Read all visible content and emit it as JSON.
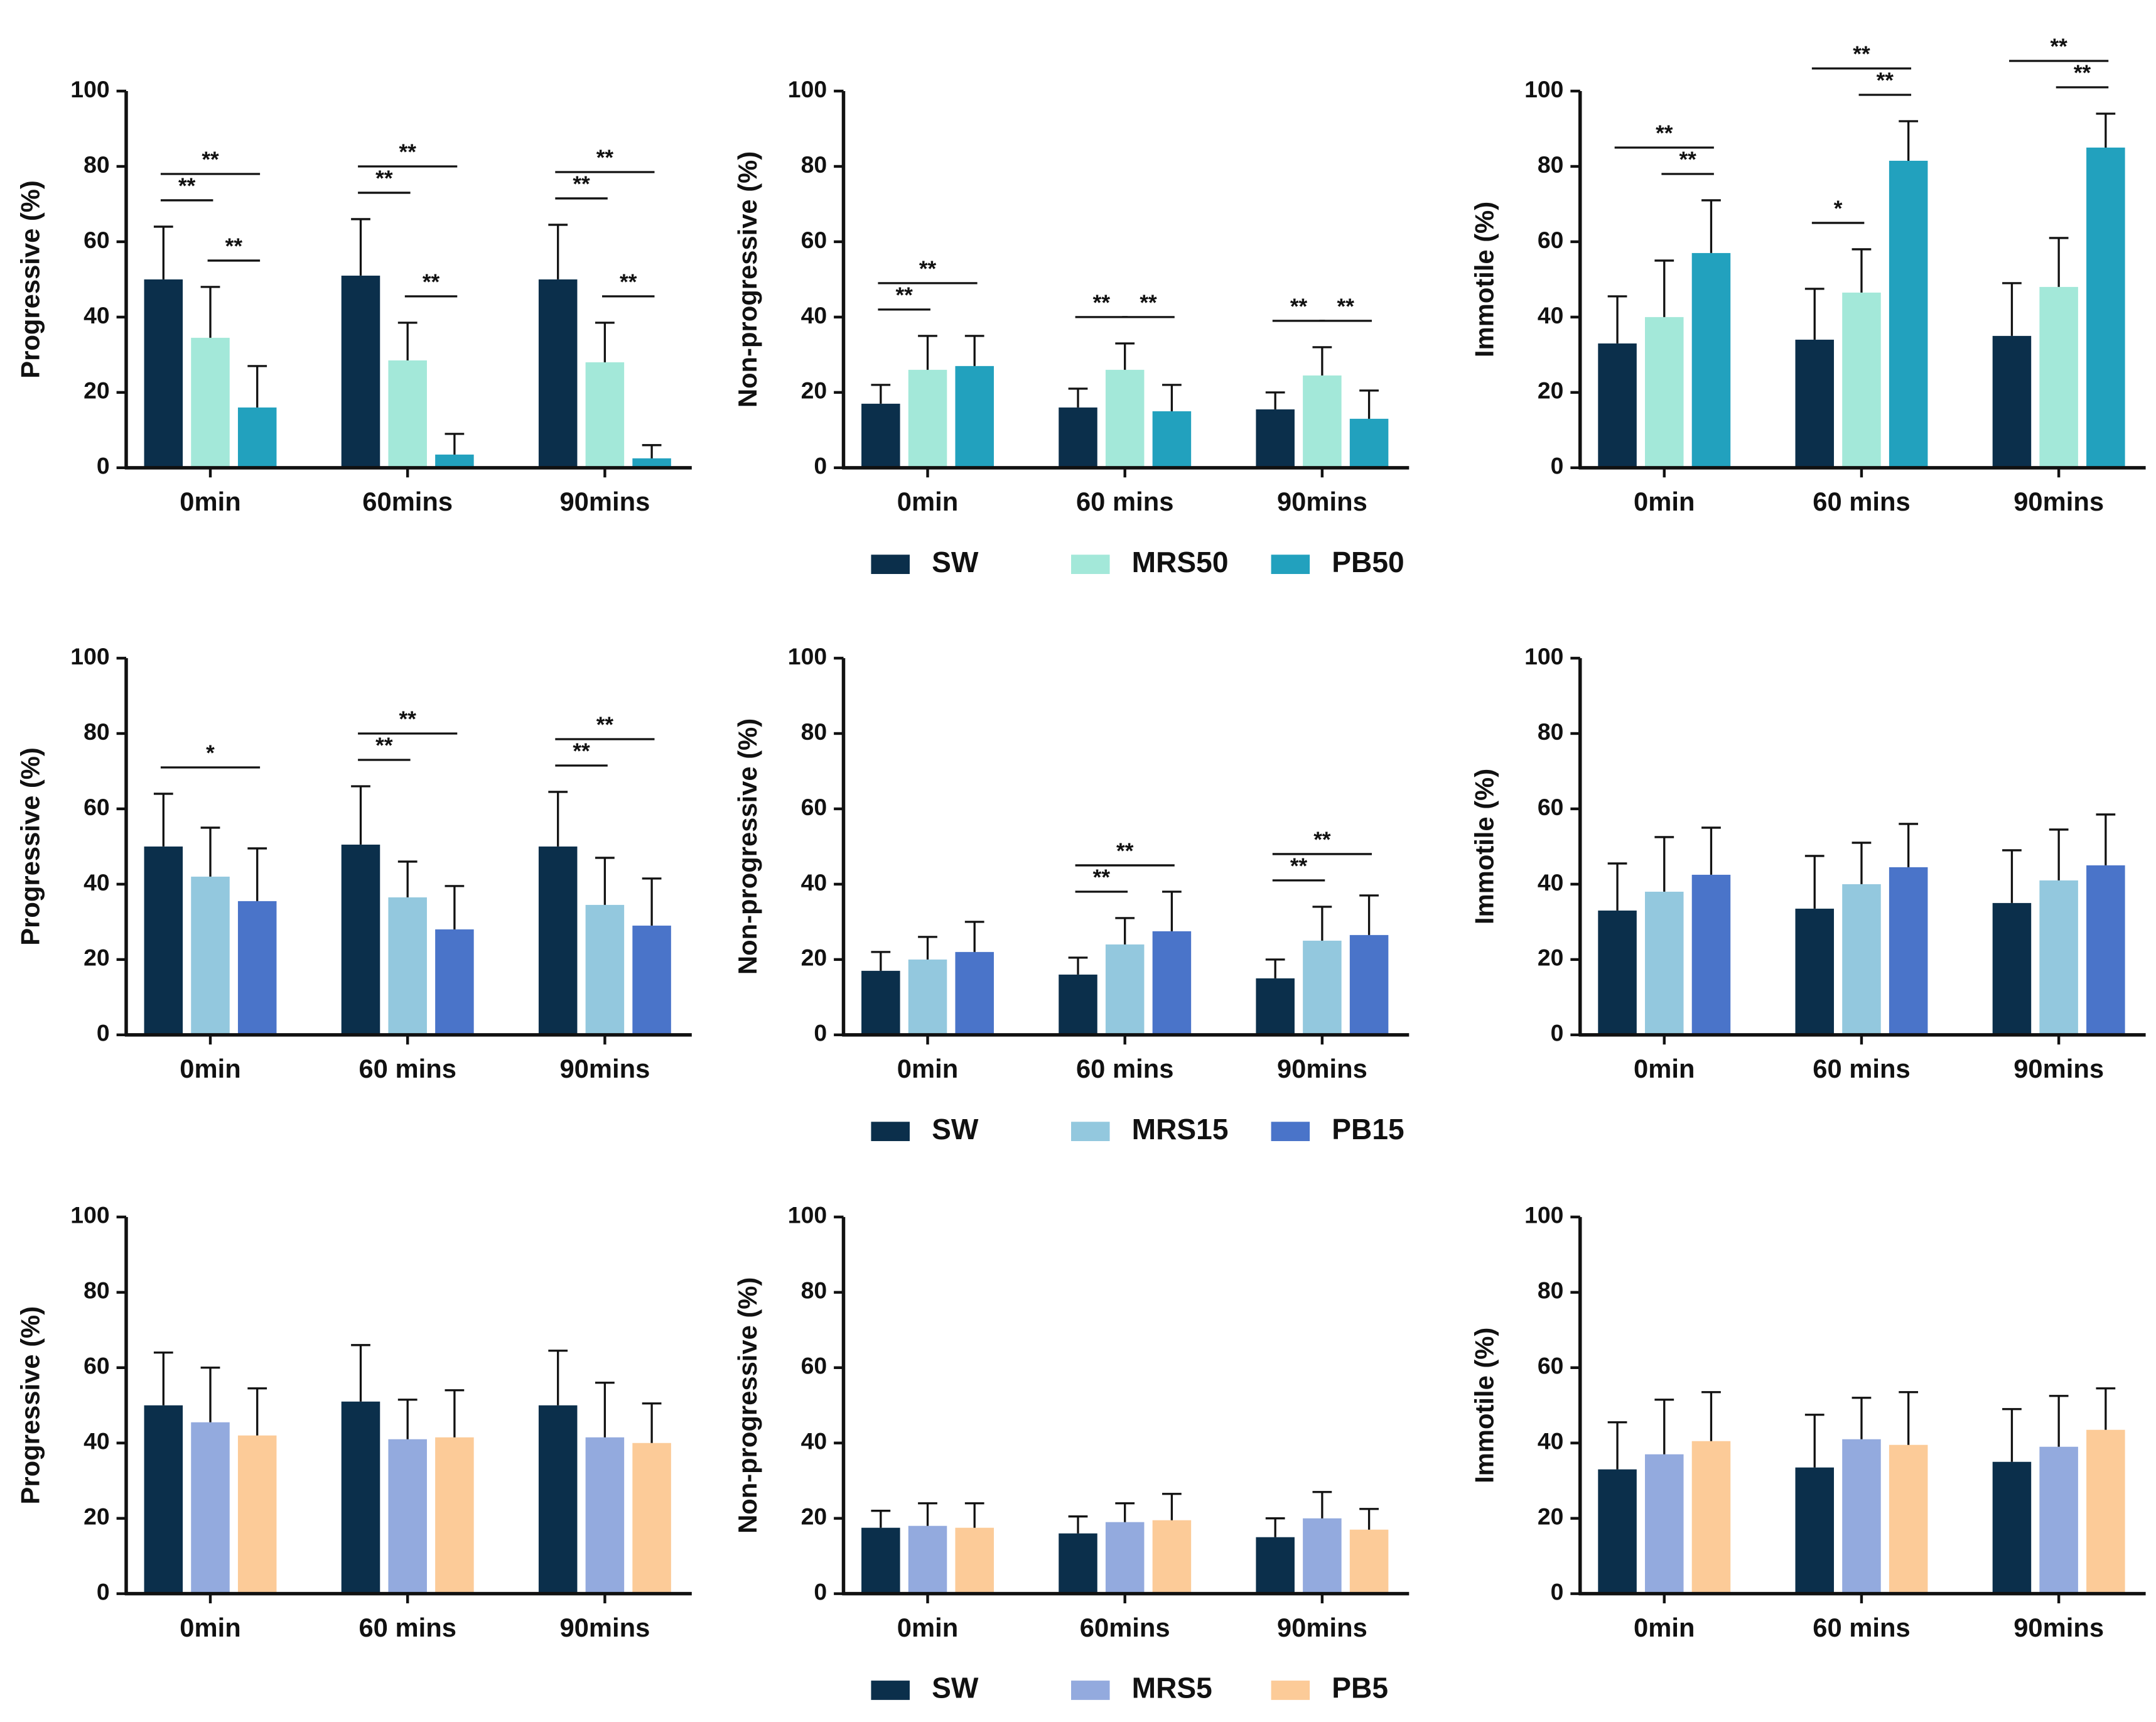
{
  "chart_data": [
    {
      "type": "bar",
      "ylabel": "Progressive (%)",
      "categories": [
        "0min",
        "60mins",
        "90mins"
      ],
      "ylim": [
        0,
        100
      ],
      "yticks": [
        0,
        20,
        40,
        60,
        80,
        100
      ],
      "series": [
        {
          "name": "SW",
          "color": "#0b2f4b",
          "values": [
            50,
            51,
            50
          ],
          "errors": [
            14,
            15,
            14.5
          ]
        },
        {
          "name": "MRS50",
          "color": "#a3e8d9",
          "values": [
            34.5,
            28.5,
            28
          ],
          "errors": [
            13.5,
            10,
            10.5
          ]
        },
        {
          "name": "PB50",
          "color": "#22a1be",
          "values": [
            16,
            3.5,
            2.5
          ],
          "errors": [
            11,
            5.5,
            3.5
          ]
        }
      ],
      "annotations": [
        {
          "label": "**",
          "category": "0min",
          "between": [
            "SW",
            "MRS50"
          ]
        },
        {
          "label": "**",
          "category": "0min",
          "between": [
            "MRS50",
            "PB50"
          ]
        },
        {
          "label": "**",
          "category": "0min",
          "between": [
            "SW",
            "PB50"
          ]
        },
        {
          "label": "**",
          "category": "60mins",
          "between": [
            "SW",
            "MRS50"
          ]
        },
        {
          "label": "**",
          "category": "60mins",
          "between": [
            "MRS50",
            "PB50"
          ]
        },
        {
          "label": "**",
          "category": "60mins",
          "between": [
            "SW",
            "PB50"
          ]
        },
        {
          "label": "**",
          "category": "90mins",
          "between": [
            "SW",
            "MRS50"
          ]
        },
        {
          "label": "**",
          "category": "90mins",
          "between": [
            "MRS50",
            "PB50"
          ]
        },
        {
          "label": "**",
          "category": "90mins",
          "between": [
            "SW",
            "PB50"
          ]
        }
      ]
    },
    {
      "type": "bar",
      "ylabel": "Non-progressive (%)",
      "categories": [
        "0min",
        "60 mins",
        "90mins"
      ],
      "ylim": [
        0,
        100
      ],
      "yticks": [
        0,
        20,
        40,
        60,
        80,
        100
      ],
      "legend": "bottom",
      "series": [
        {
          "name": "SW",
          "color": "#0b2f4b",
          "values": [
            17,
            16,
            15.5
          ],
          "errors": [
            5,
            5,
            4.5
          ]
        },
        {
          "name": "MRS50",
          "color": "#a3e8d9",
          "values": [
            26,
            26,
            24.5
          ],
          "errors": [
            9,
            7,
            7.5
          ]
        },
        {
          "name": "PB50",
          "color": "#22a1be",
          "values": [
            27,
            15,
            13
          ],
          "errors": [
            8,
            7,
            7.5
          ]
        }
      ],
      "annotations": [
        {
          "label": "**",
          "category": "0min",
          "between": [
            "SW",
            "MRS50"
          ]
        },
        {
          "label": "**",
          "category": "0min",
          "between": [
            "SW",
            "PB50"
          ]
        },
        {
          "label": "**",
          "category": "60 mins",
          "between": [
            "SW",
            "MRS50"
          ]
        },
        {
          "label": "**",
          "category": "60 mins",
          "between": [
            "MRS50",
            "PB50"
          ]
        },
        {
          "label": "**",
          "category": "90mins",
          "between": [
            "SW",
            "MRS50"
          ]
        },
        {
          "label": "**",
          "category": "90mins",
          "between": [
            "MRS50",
            "PB50"
          ]
        }
      ]
    },
    {
      "type": "bar",
      "ylabel": "Immotile (%)",
      "categories": [
        "0min",
        "60 mins",
        "90mins"
      ],
      "ylim": [
        0,
        100
      ],
      "yticks": [
        0,
        20,
        40,
        60,
        80,
        100
      ],
      "series": [
        {
          "name": "SW",
          "color": "#0b2f4b",
          "values": [
            33,
            34,
            35
          ],
          "errors": [
            12.5,
            13.5,
            14
          ]
        },
        {
          "name": "MRS50",
          "color": "#a3e8d9",
          "values": [
            40,
            46.5,
            48
          ],
          "errors": [
            15,
            11.5,
            13
          ]
        },
        {
          "name": "PB50",
          "color": "#22a1be",
          "values": [
            57,
            81.5,
            85
          ],
          "errors": [
            14,
            10.5,
            9
          ]
        }
      ],
      "annotations": [
        {
          "label": "**",
          "category": "0min",
          "between": [
            "MRS50",
            "PB50"
          ]
        },
        {
          "label": "**",
          "category": "0min",
          "between": [
            "SW",
            "PB50"
          ]
        },
        {
          "label": "*",
          "category": "60 mins",
          "between": [
            "SW",
            "MRS50"
          ]
        },
        {
          "label": "**",
          "category": "60 mins",
          "between": [
            "MRS50",
            "PB50"
          ]
        },
        {
          "label": "**",
          "category": "60 mins",
          "between": [
            "SW",
            "PB50"
          ]
        },
        {
          "label": "**",
          "category": "90mins",
          "between": [
            "MRS50",
            "PB50"
          ]
        },
        {
          "label": "**",
          "category": "90mins",
          "between": [
            "SW",
            "PB50"
          ]
        }
      ]
    },
    {
      "type": "bar",
      "ylabel": "Progressive (%)",
      "categories": [
        "0min",
        "60 mins",
        "90mins"
      ],
      "ylim": [
        0,
        100
      ],
      "yticks": [
        0,
        20,
        40,
        60,
        80,
        100
      ],
      "series": [
        {
          "name": "SW",
          "color": "#0b2f4b",
          "values": [
            50,
            50.5,
            50
          ],
          "errors": [
            14,
            15.5,
            14.5
          ]
        },
        {
          "name": "MRS15",
          "color": "#93c8de",
          "values": [
            42,
            36.5,
            34.5
          ],
          "errors": [
            13,
            9.5,
            12.5
          ]
        },
        {
          "name": "PB15",
          "color": "#4a74c9",
          "values": [
            35.5,
            28,
            29
          ],
          "errors": [
            14,
            11.5,
            12.5
          ]
        }
      ],
      "annotations": [
        {
          "label": "*",
          "category": "0min",
          "between": [
            "SW",
            "PB15"
          ]
        },
        {
          "label": "**",
          "category": "60 mins",
          "between": [
            "SW",
            "MRS15"
          ]
        },
        {
          "label": "**",
          "category": "60 mins",
          "between": [
            "SW",
            "PB15"
          ]
        },
        {
          "label": "**",
          "category": "90mins",
          "between": [
            "SW",
            "MRS15"
          ]
        },
        {
          "label": "**",
          "category": "90mins",
          "between": [
            "SW",
            "PB15"
          ]
        }
      ]
    },
    {
      "type": "bar",
      "ylabel": "Non-progressive (%)",
      "categories": [
        "0min",
        "60 mins",
        "90mins"
      ],
      "ylim": [
        0,
        100
      ],
      "yticks": [
        0,
        20,
        40,
        60,
        80,
        100
      ],
      "legend": "bottom",
      "series": [
        {
          "name": "SW",
          "color": "#0b2f4b",
          "values": [
            17,
            16,
            15
          ],
          "errors": [
            5,
            4.5,
            5
          ]
        },
        {
          "name": "MRS15",
          "color": "#93c8de",
          "values": [
            20,
            24,
            25
          ],
          "errors": [
            6,
            7,
            9
          ]
        },
        {
          "name": "PB15",
          "color": "#4a74c9",
          "values": [
            22,
            27.5,
            26.5
          ],
          "errors": [
            8,
            10.5,
            10.5
          ]
        }
      ],
      "annotations": [
        {
          "label": "**",
          "category": "60 mins",
          "between": [
            "SW",
            "MRS15"
          ]
        },
        {
          "label": "**",
          "category": "60 mins",
          "between": [
            "SW",
            "PB15"
          ]
        },
        {
          "label": "**",
          "category": "90mins",
          "between": [
            "SW",
            "MRS15"
          ]
        },
        {
          "label": "**",
          "category": "90mins",
          "between": [
            "SW",
            "PB15"
          ]
        }
      ]
    },
    {
      "type": "bar",
      "ylabel": "Immotile (%)",
      "categories": [
        "0min",
        "60 mins",
        "90mins"
      ],
      "ylim": [
        0,
        100
      ],
      "yticks": [
        0,
        20,
        40,
        60,
        80,
        100
      ],
      "series": [
        {
          "color": "#0b2f4b",
          "values": [
            33,
            33.5,
            35
          ],
          "errors": [
            12.5,
            14,
            14
          ]
        },
        {
          "color": "#93c8de",
          "values": [
            38,
            40,
            41
          ],
          "errors": [
            14.5,
            11,
            13.5
          ]
        },
        {
          "color": "#4a74c9",
          "values": [
            42.5,
            44.5,
            45
          ],
          "errors": [
            12.5,
            11.5,
            13.5
          ]
        }
      ]
    },
    {
      "type": "bar",
      "ylabel": "Progressive (%)",
      "categories": [
        "0min",
        "60 mins",
        "90mins"
      ],
      "ylim": [
        0,
        100
      ],
      "yticks": [
        0,
        20,
        40,
        60,
        80,
        100
      ],
      "series": [
        {
          "color": "#0b2f4b",
          "values": [
            50,
            51,
            50
          ],
          "errors": [
            14,
            15,
            14.5
          ]
        },
        {
          "color": "#93aade",
          "values": [
            45.5,
            41,
            41.5
          ],
          "errors": [
            14.5,
            10.5,
            14.5
          ]
        },
        {
          "color": "#fccb98",
          "values": [
            42,
            41.5,
            40
          ],
          "errors": [
            12.5,
            12.5,
            10.5
          ]
        }
      ]
    },
    {
      "type": "bar",
      "ylabel": "Non-progressive (%)",
      "categories": [
        "0min",
        "60mins",
        "90mins"
      ],
      "ylim": [
        0,
        100
      ],
      "yticks": [
        0,
        20,
        40,
        60,
        80,
        100
      ],
      "legend": "bottom",
      "series": [
        {
          "name": "SW",
          "color": "#0b2f4b",
          "values": [
            17.5,
            16,
            15
          ],
          "errors": [
            4.5,
            4.5,
            5
          ]
        },
        {
          "name": "MRS5",
          "color": "#93aade",
          "values": [
            18,
            19,
            20
          ],
          "errors": [
            6,
            5,
            7
          ]
        },
        {
          "name": "PB5",
          "color": "#fccb98",
          "values": [
            17.5,
            19.5,
            17
          ],
          "errors": [
            6.5,
            7,
            5.5
          ]
        }
      ]
    },
    {
      "type": "bar",
      "ylabel": "Immotile (%)",
      "categories": [
        "0min",
        "60 mins",
        "90mins"
      ],
      "ylim": [
        0,
        100
      ],
      "yticks": [
        0,
        20,
        40,
        60,
        80,
        100
      ],
      "series": [
        {
          "color": "#0b2f4b",
          "values": [
            33,
            33.5,
            35
          ],
          "errors": [
            12.5,
            14,
            14
          ]
        },
        {
          "color": "#93aade",
          "values": [
            37,
            41,
            39
          ],
          "errors": [
            14.5,
            11,
            13.5
          ]
        },
        {
          "color": "#fccb98",
          "values": [
            40.5,
            39.5,
            43.5
          ],
          "errors": [
            13,
            14,
            11
          ]
        }
      ]
    }
  ]
}
